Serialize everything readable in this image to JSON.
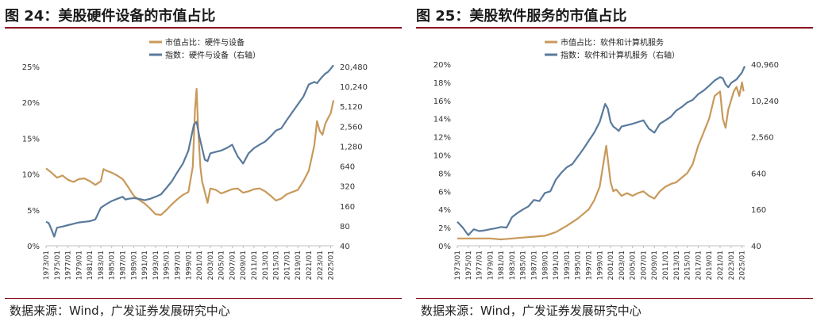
{
  "chart_data": [
    {
      "type": "line",
      "title": "图 24：美股硬件设备的市值占比",
      "source": "数据来源：Wind，广发证券发展研究中心",
      "x_ticks": [
        "1973/01",
        "1975/01",
        "1977/01",
        "1979/01",
        "1981/01",
        "1983/01",
        "1985/01",
        "1987/01",
        "1989/01",
        "1991/01",
        "1993/01",
        "1995/01",
        "1997/01",
        "1999/01",
        "2001/01",
        "2003/01",
        "2005/01",
        "2007/01",
        "2009/01",
        "2011/01",
        "2013/01",
        "2015/01",
        "2017/01",
        "2019/01",
        "2021/01",
        "2023/01",
        "2025/01"
      ],
      "x_range": [
        1973,
        2025.5
      ],
      "y_left_ticks": [
        "0%",
        "5%",
        "10%",
        "15%",
        "20%",
        "25%"
      ],
      "y_left_range": [
        0,
        25
      ],
      "y_right_ticks": [
        "40",
        "80",
        "160",
        "320",
        "640",
        "1,280",
        "2,560",
        "5,120",
        "10,240",
        "20,480"
      ],
      "y_right_range": [
        40,
        20480
      ],
      "y_right_scale": "log2",
      "legend_position": "top-center",
      "series": [
        {
          "name": "市值占比：硬件与设备",
          "axis": "left",
          "color": "#c8995a",
          "x": [
            1973,
            1974,
            1975,
            1976,
            1977,
            1978,
            1979,
            1980,
            1981,
            1982,
            1983,
            1983.5,
            1984,
            1985,
            1986,
            1987,
            1988,
            1989,
            1990,
            1991,
            1992,
            1993,
            1994,
            1995,
            1996,
            1997,
            1998,
            1999,
            1999.8,
            2000.2,
            2000.5,
            2000.8,
            2001.2,
            2001.5,
            2002,
            2002.5,
            2003,
            2004,
            2005,
            2006,
            2007,
            2008,
            2009,
            2010,
            2011,
            2012,
            2013,
            2014,
            2015,
            2016,
            2017,
            2018,
            2019,
            2020,
            2021,
            2022,
            2022.5,
            2023,
            2023.5,
            2024,
            2024.5,
            2025,
            2025.5
          ],
          "values": [
            10.8,
            10.2,
            9.5,
            9.8,
            9.2,
            8.9,
            9.3,
            9.4,
            9.0,
            8.5,
            9.0,
            10.7,
            10.5,
            10.2,
            9.8,
            9.3,
            8.2,
            7.0,
            6.4,
            5.9,
            5.2,
            4.4,
            4.3,
            5.0,
            5.8,
            6.5,
            7.1,
            7.5,
            11.0,
            19.0,
            21.9,
            16.0,
            11.0,
            9.0,
            7.5,
            6.0,
            8.0,
            7.8,
            7.3,
            7.6,
            7.9,
            8.0,
            7.4,
            7.6,
            7.9,
            8.0,
            7.6,
            7.0,
            6.3,
            6.6,
            7.2,
            7.5,
            7.8,
            9.0,
            10.5,
            14.0,
            17.4,
            16.0,
            15.5,
            17.0,
            17.8,
            18.5,
            20.3
          ]
        },
        {
          "name": "指数：硬件与设备（右轴）",
          "axis": "right",
          "color": "#5a7a9c",
          "x": [
            1973,
            1973.5,
            1974,
            1974.5,
            1975,
            1976,
            1977,
            1978,
            1979,
            1980,
            1981,
            1982,
            1983,
            1984,
            1985,
            1986,
            1987,
            1987.5,
            1988,
            1989,
            1990,
            1991,
            1992,
            1993,
            1994,
            1995,
            1996,
            1997,
            1998,
            1999,
            2000,
            2000.5,
            2001,
            2001.5,
            2002,
            2002.5,
            2003,
            2004,
            2005,
            2006,
            2007,
            2008,
            2009,
            2010,
            2011,
            2012,
            2013,
            2014,
            2015,
            2016,
            2017,
            2018,
            2019,
            2020,
            2021,
            2022,
            2022.5,
            2023,
            2023.5,
            2024,
            2024.5,
            2025,
            2025.5
          ],
          "values": [
            92,
            88,
            70,
            55,
            75,
            78,
            82,
            86,
            90,
            92,
            94,
            100,
            150,
            170,
            190,
            205,
            220,
            200,
            205,
            210,
            205,
            195,
            205,
            220,
            240,
            300,
            380,
            520,
            700,
            1100,
            2700,
            3000,
            1800,
            1200,
            800,
            760,
            1000,
            1050,
            1100,
            1200,
            1350,
            900,
            700,
            1000,
            1200,
            1350,
            1500,
            1800,
            2200,
            2400,
            3200,
            4200,
            5500,
            7200,
            11000,
            12000,
            11500,
            13000,
            14500,
            16000,
            17000,
            19000,
            21500
          ]
        }
      ]
    },
    {
      "type": "line",
      "title": "图 25：美股软件服务的市值占比",
      "source": "数据来源：Wind，广发证券发展研究中心",
      "x_ticks": [
        "1973/01",
        "1975/01",
        "1977/01",
        "1979/01",
        "1981/01",
        "1983/01",
        "1985/01",
        "1987/01",
        "1989/01",
        "1991/01",
        "1993/01",
        "1995/01",
        "1997/01",
        "1999/01",
        "2001/01",
        "2003/01",
        "2005/01",
        "2007/01",
        "2009/01",
        "2011/01",
        "2013/01",
        "2015/01",
        "2017/01",
        "2019/01",
        "2021/01",
        "2023/01",
        "2025/01"
      ],
      "x_range": [
        1973,
        2025.5
      ],
      "y_left_ticks": [
        "0%",
        "2%",
        "4%",
        "6%",
        "8%",
        "10%",
        "12%",
        "14%",
        "16%",
        "18%",
        "20%"
      ],
      "y_left_range": [
        0,
        20
      ],
      "y_right_ticks": [
        "40",
        "160",
        "640",
        "2,560",
        "10,240",
        "40,960"
      ],
      "y_right_range": [
        40,
        40960
      ],
      "y_right_scale": "log2",
      "legend_position": "top-center",
      "series": [
        {
          "name": "市值占比：软件和计算机服务",
          "axis": "left",
          "color": "#c8995a",
          "x": [
            1973,
            1975,
            1977,
            1979,
            1981,
            1983,
            1985,
            1987,
            1989,
            1991,
            1993,
            1995,
            1997,
            1998,
            1999,
            1999.8,
            2000.2,
            2000.6,
            2001,
            2001.5,
            2002,
            2003,
            2004,
            2005,
            2006,
            2007,
            2008,
            2009,
            2010,
            2011,
            2012,
            2013,
            2014,
            2015,
            2016,
            2017,
            2018,
            2019,
            2020,
            2021,
            2021.5,
            2022,
            2022.5,
            2023,
            2023.5,
            2024,
            2024.5,
            2025,
            2025.3
          ],
          "values": [
            0.8,
            0.8,
            0.8,
            0.8,
            0.7,
            0.8,
            0.9,
            1.0,
            1.1,
            1.5,
            2.2,
            3.0,
            4.0,
            5.0,
            6.5,
            9.5,
            11.0,
            9.0,
            7.0,
            6.0,
            6.2,
            5.5,
            5.8,
            5.5,
            5.8,
            6.0,
            5.5,
            5.2,
            6.0,
            6.5,
            6.8,
            7.0,
            7.5,
            8.0,
            9.0,
            11.0,
            12.5,
            14.0,
            16.5,
            17.0,
            14.0,
            13.0,
            15.0,
            16.0,
            17.0,
            17.5,
            16.5,
            18.0,
            17.0
          ]
        },
        {
          "name": "指数：软件和计算机服务（右轴）",
          "axis": "right",
          "color": "#5a7a9c",
          "x": [
            1973,
            1974,
            1975,
            1976,
            1977,
            1978,
            1979,
            1980,
            1981,
            1982,
            1983,
            1984,
            1985,
            1986,
            1987,
            1988,
            1989,
            1990,
            1991,
            1992,
            1993,
            1994,
            1995,
            1996,
            1997,
            1998,
            1999,
            2000,
            2000.5,
            2001,
            2001.5,
            2002,
            2002.5,
            2003,
            2004,
            2005,
            2006,
            2007,
            2008,
            2009,
            2010,
            2011,
            2012,
            2013,
            2014,
            2015,
            2016,
            2017,
            2018,
            2019,
            2020,
            2021,
            2021.5,
            2022,
            2022.5,
            2023,
            2024,
            2025,
            2025.5
          ],
          "values": [
            100,
            80,
            60,
            75,
            70,
            72,
            75,
            78,
            82,
            80,
            120,
            140,
            160,
            180,
            230,
            220,
            300,
            320,
            500,
            650,
            800,
            900,
            1200,
            1600,
            2200,
            3000,
            4500,
            9000,
            7500,
            4500,
            3800,
            3500,
            3200,
            3800,
            4000,
            4200,
            4500,
            4800,
            3500,
            3000,
            4200,
            4800,
            5500,
            7000,
            8000,
            9500,
            10500,
            13000,
            15000,
            18000,
            22000,
            25000,
            24000,
            19000,
            17000,
            20000,
            23000,
            30000,
            38000
          ]
        }
      ]
    }
  ]
}
